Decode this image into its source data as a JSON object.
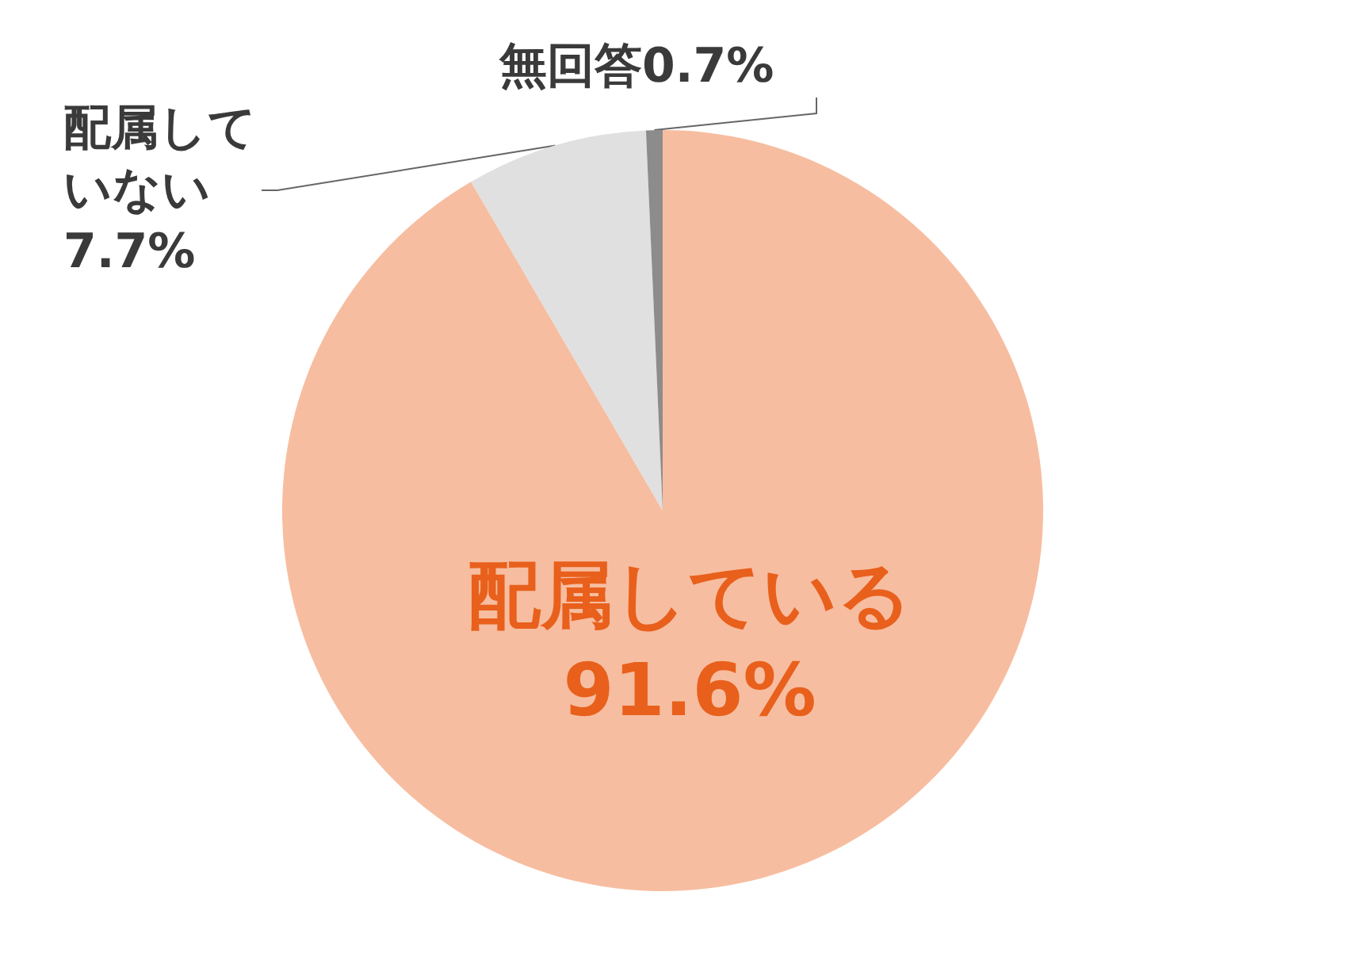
{
  "chart_data": {
    "type": "pie",
    "categories": [
      "配属している",
      "配属していない",
      "無回答"
    ],
    "values": [
      91.6,
      7.7,
      0.7
    ],
    "colors": [
      "#f7bda0",
      "#e0e0e0",
      "#8c8c8c"
    ],
    "value_labels": [
      "91.6%",
      "7.7%",
      "0.7%"
    ],
    "legend": false
  }
}
